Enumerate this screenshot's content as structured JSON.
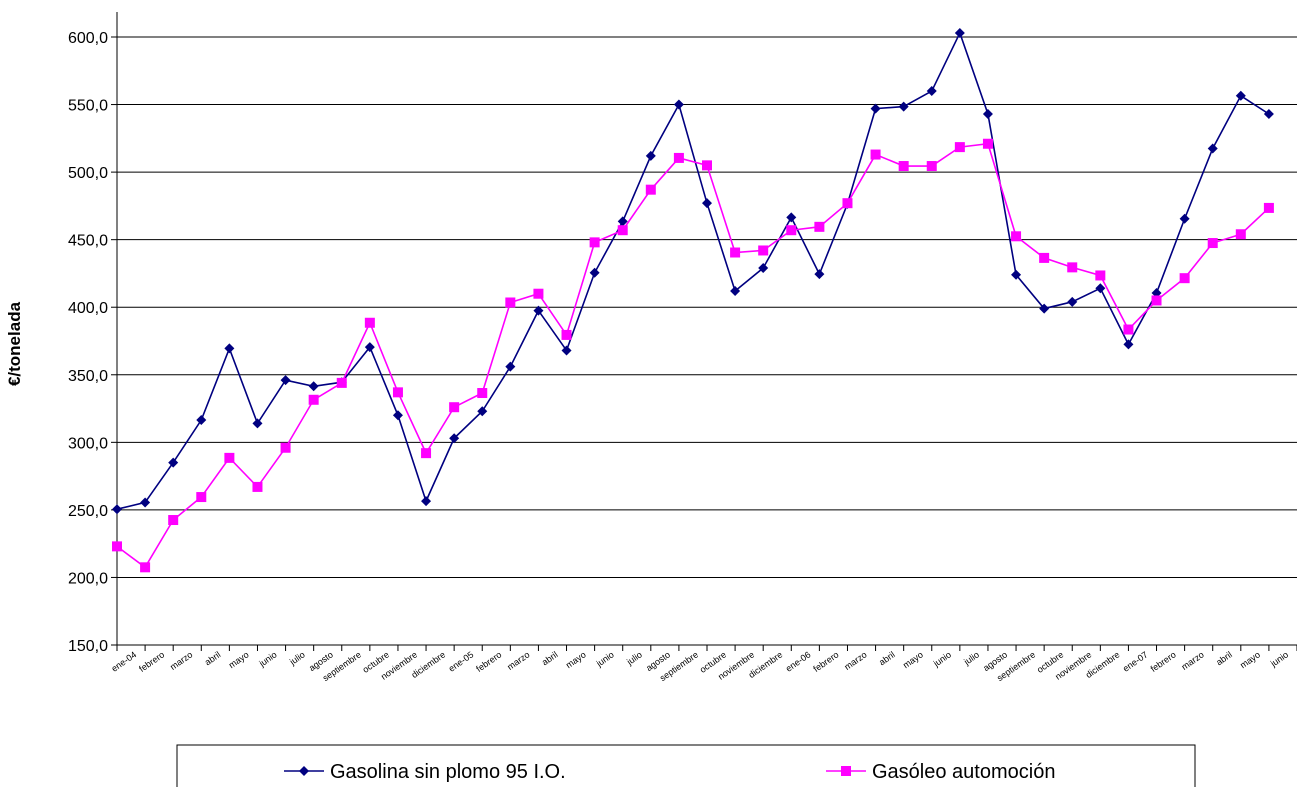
{
  "chart_data": {
    "type": "line",
    "title": "",
    "xlabel": "",
    "ylabel": "€/tonelada",
    "ylim": [
      150,
      600
    ],
    "yticks": [
      "150,0",
      "200,0",
      "250,0",
      "300,0",
      "350,0",
      "400,0",
      "450,0",
      "500,0",
      "550,0",
      "600,0"
    ],
    "grid": "horizontal",
    "legend_position": "bottom",
    "categories": [
      "ene-04",
      "febrero",
      "marzo",
      "abril",
      "mayo",
      "junio",
      "julio",
      "agosto",
      "septiembre",
      "octubre",
      "noviembre",
      "diciembre",
      "ene-05",
      "febrero",
      "marzo",
      "abril",
      "mayo",
      "junio",
      "julio",
      "agosto",
      "septiembre",
      "octubre",
      "noviembre",
      "diciembre",
      "ene-06",
      "febrero",
      "marzo",
      "abril",
      "mayo",
      "junio",
      "julio",
      "agosto",
      "septiembre",
      "octubre",
      "noviembre",
      "diciembre",
      "ene-07",
      "febrero",
      "marzo",
      "abril",
      "mayo",
      "junio"
    ],
    "series": [
      {
        "name": "Gasolina sin plomo 95 I.O.",
        "color": "#000080",
        "marker": "diamond",
        "values": [
          250.5,
          255.5,
          285.0,
          316.5,
          369.5,
          314.0,
          346.0,
          341.5,
          344.5,
          370.5,
          320.0,
          256.5,
          303.0,
          323.0,
          356.0,
          397.5,
          368.0,
          425.5,
          463.5,
          512.0,
          550.0,
          477.0,
          412.0,
          429.0,
          466.5,
          424.5,
          476.5,
          547.0,
          548.5,
          560.0,
          603.0,
          543.0,
          424.0,
          399.0,
          404.0,
          414.0,
          372.5,
          410.5,
          465.5,
          517.5,
          556.5,
          543.0
        ]
      },
      {
        "name": "Gasóleo automoción",
        "color": "#FF00FF",
        "marker": "square",
        "values": [
          223.0,
          207.5,
          242.5,
          259.5,
          288.5,
          267.0,
          296.0,
          331.5,
          344.0,
          388.5,
          337.0,
          292.0,
          326.0,
          336.5,
          403.5,
          410.0,
          379.5,
          448.0,
          457.0,
          487.0,
          510.5,
          505.0,
          440.5,
          442.0,
          457.0,
          459.5,
          477.0,
          513.0,
          504.5,
          504.5,
          518.5,
          521.0,
          452.5,
          436.5,
          429.5,
          423.5,
          383.5,
          405.0,
          421.5,
          447.5,
          454.0,
          473.5
        ]
      }
    ]
  }
}
